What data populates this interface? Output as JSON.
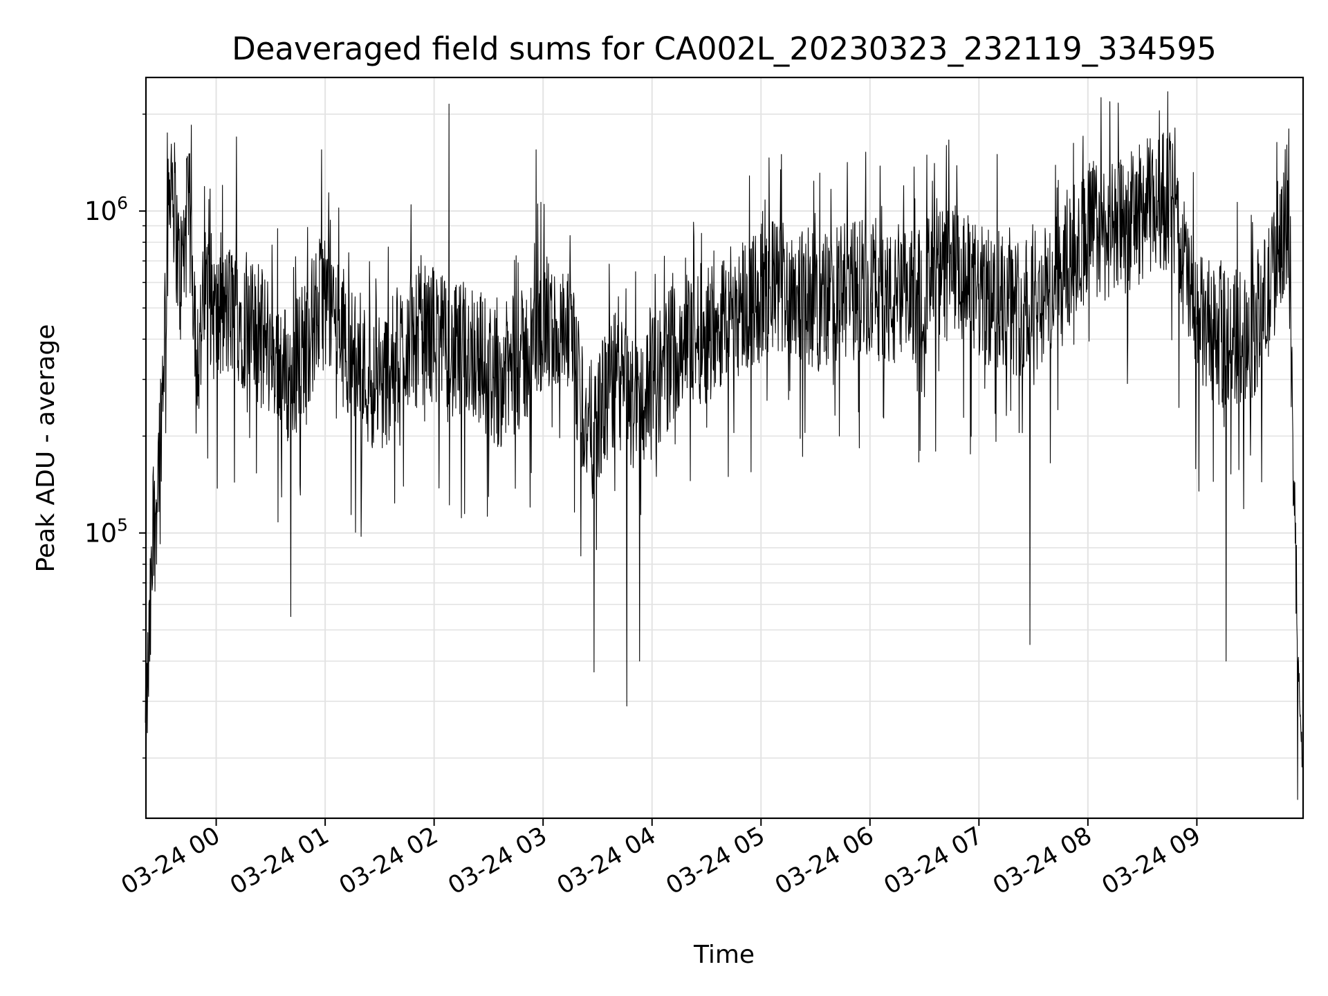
{
  "chart_data": {
    "type": "line",
    "title": "Deaveraged field sums for CA002L_20230323_232119_334595",
    "xlabel": "Time",
    "ylabel": "Peak ADU - average",
    "yscale": "log",
    "ylim": [
      13000,
      2600000
    ],
    "xlim": [
      "2023-03-23 23:21:19",
      "2023-03-24 09:58:30"
    ],
    "x_ticks": [
      "03-24 00",
      "03-24 01",
      "03-24 02",
      "03-24 03",
      "03-24 04",
      "03-24 05",
      "03-24 06",
      "03-24 07",
      "03-24 08",
      "03-24 09"
    ],
    "y_ticks": [
      {
        "base": "10",
        "exp": "5",
        "value": 100000
      },
      {
        "base": "10",
        "exp": "6",
        "value": 1000000
      }
    ],
    "grid": true,
    "line_color": "#000000",
    "series": [
      {
        "name": "",
        "x": [
          "03-23 23:21",
          "03-23 23:25",
          "03-23 23:30",
          "03-23 23:35",
          "03-23 23:40",
          "03-23 23:45",
          "03-23 23:50",
          "03-23 23:55",
          "03-24 00:00",
          "03-24 00:10",
          "03-24 00:20",
          "03-24 00:30",
          "03-24 00:40",
          "03-24 00:50",
          "03-24 01:00",
          "03-24 01:15",
          "03-24 01:30",
          "03-24 01:45",
          "03-24 02:00",
          "03-24 02:10",
          "03-24 02:20",
          "03-24 02:35",
          "03-24 02:50",
          "03-24 03:00",
          "03-24 03:15",
          "03-24 03:25",
          "03-24 03:40",
          "03-24 03:50",
          "03-24 04:00",
          "03-24 04:15",
          "03-24 04:30",
          "03-24 04:45",
          "03-24 05:00",
          "03-24 05:15",
          "03-24 05:30",
          "03-24 05:45",
          "03-24 06:00",
          "03-24 06:15",
          "03-24 06:30",
          "03-24 06:45",
          "03-24 07:00",
          "03-24 07:15",
          "03-24 07:30",
          "03-24 07:45",
          "03-24 08:00",
          "03-24 08:15",
          "03-24 08:30",
          "03-24 08:45",
          "03-24 09:00",
          "03-24 09:15",
          "03-24 09:30",
          "03-24 09:40",
          "03-24 09:45",
          "03-24 09:50",
          "03-24 09:55",
          "03-24 09:58"
        ],
        "y": [
          22000,
          80000,
          250000,
          1500000,
          600000,
          1000000,
          350000,
          600000,
          450000,
          500000,
          420000,
          380000,
          300000,
          400000,
          550000,
          350000,
          280000,
          400000,
          420000,
          350000,
          380000,
          300000,
          350000,
          450000,
          380000,
          200000,
          300000,
          250000,
          280000,
          400000,
          420000,
          500000,
          550000,
          600000,
          520000,
          550000,
          600000,
          500000,
          580000,
          650000,
          550000,
          500000,
          520000,
          600000,
          900000,
          850000,
          1000000,
          1100000,
          450000,
          400000,
          420000,
          550000,
          800000,
          1000000,
          55000,
          20000
        ],
        "peaks": [
          {
            "x": "03-23 23:33",
            "y": 1750000
          },
          {
            "x": "03-24 00:11",
            "y": 1700000
          },
          {
            "x": "03-24 00:58",
            "y": 1550000
          },
          {
            "x": "03-24 02:08",
            "y": 2150000
          },
          {
            "x": "03-24 02:56",
            "y": 1550000
          },
          {
            "x": "03-24 07:10",
            "y": 1500000
          },
          {
            "x": "03-24 08:45",
            "y": 1750000
          }
        ],
        "dips": [
          {
            "x": "03-24 00:41",
            "y": 55000
          },
          {
            "x": "03-24 03:28",
            "y": 37000
          },
          {
            "x": "03-24 03:46",
            "y": 29000
          },
          {
            "x": "03-24 03:53",
            "y": 40000
          },
          {
            "x": "03-24 07:28",
            "y": 45000
          },
          {
            "x": "03-24 09:16",
            "y": 40000
          }
        ]
      }
    ]
  }
}
